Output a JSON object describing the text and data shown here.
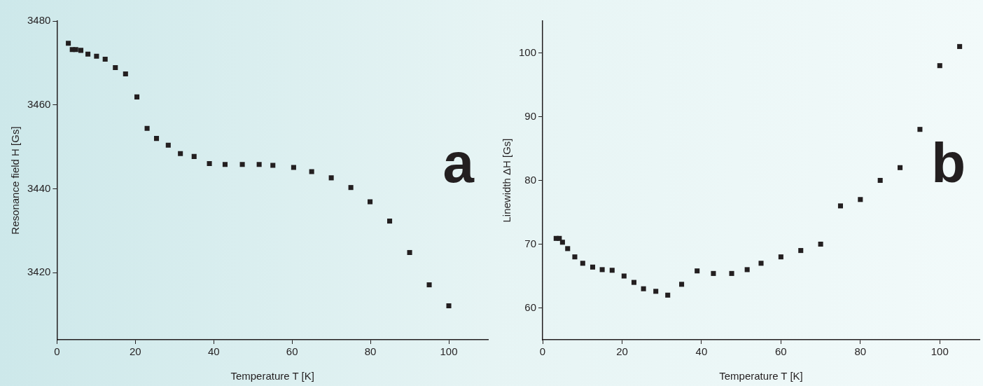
{
  "chart_data": [
    {
      "type": "scatter",
      "xlabel": "Temperature T [K]",
      "ylabel": "Resonance field H [Gs]",
      "annotations": [
        "a"
      ],
      "marker": "square",
      "grid": false,
      "legend": false,
      "xlim": [
        0,
        110
      ],
      "xticks": [
        0,
        20,
        40,
        60,
        80,
        100
      ],
      "ylim": [
        3404,
        3480
      ],
      "yticks": [
        3420,
        3440,
        3460,
        3480
      ],
      "series": [
        {
          "color": "#231f20",
          "x": [
            2.9,
            3.9,
            4.8,
            6.1,
            7.9,
            10.1,
            12.3,
            14.9,
            17.5,
            20.4,
            23.0,
            25.4,
            28.4,
            31.5,
            35.0,
            38.9,
            42.9,
            47.3,
            51.6,
            55.1,
            60.4,
            65.0,
            70.0,
            75.0,
            79.9,
            84.9,
            90.0,
            95.0,
            100
          ],
          "values": [
            3474.7,
            3473.2,
            3473.2,
            3473.0,
            3472.1,
            3471.6,
            3470.9,
            3468.9,
            3467.4,
            3461.9,
            3454.4,
            3452.0,
            3450.4,
            3448.4,
            3447.7,
            3446.0,
            3445.8,
            3445.8,
            3445.8,
            3445.6,
            3445.1,
            3444.1,
            3442.6,
            3440.3,
            3436.9,
            3432.3,
            3424.8,
            3417.1,
            3412.1
          ]
        }
      ]
    },
    {
      "type": "scatter",
      "xlabel": "Temperature T [K]",
      "ylabel": "Linewidth ΔH [Gs]",
      "annotations": [
        "b"
      ],
      "marker": "square",
      "grid": false,
      "legend": false,
      "xlim": [
        0,
        110
      ],
      "xticks": [
        0,
        20,
        40,
        60,
        80,
        100
      ],
      "ylim": [
        55,
        105
      ],
      "yticks": [
        60,
        70,
        80,
        90,
        100
      ],
      "series": [
        {
          "color": "#231f20",
          "x": [
            3.4,
            4.2,
            5.0,
            6.3,
            8.1,
            10.1,
            12.6,
            15.0,
            17.5,
            20.5,
            23.0,
            25.4,
            28.5,
            31.5,
            35.0,
            38.9,
            43.0,
            47.6,
            51.5,
            55.0,
            60.0,
            65.0,
            70.0,
            75.0,
            80.0,
            85.0,
            90.0,
            95.0,
            100.0,
            105.0
          ],
          "values": [
            70.9,
            70.9,
            70.3,
            69.3,
            68.0,
            67.0,
            66.4,
            66.0,
            65.9,
            65.0,
            64.0,
            63.0,
            62.6,
            62.0,
            63.7,
            65.8,
            65.4,
            65.4,
            66.0,
            67.0,
            68.0,
            69.0,
            70.0,
            76.0,
            77.0,
            80.0,
            82.0,
            88.0,
            98.0,
            101.0
          ]
        }
      ]
    }
  ]
}
